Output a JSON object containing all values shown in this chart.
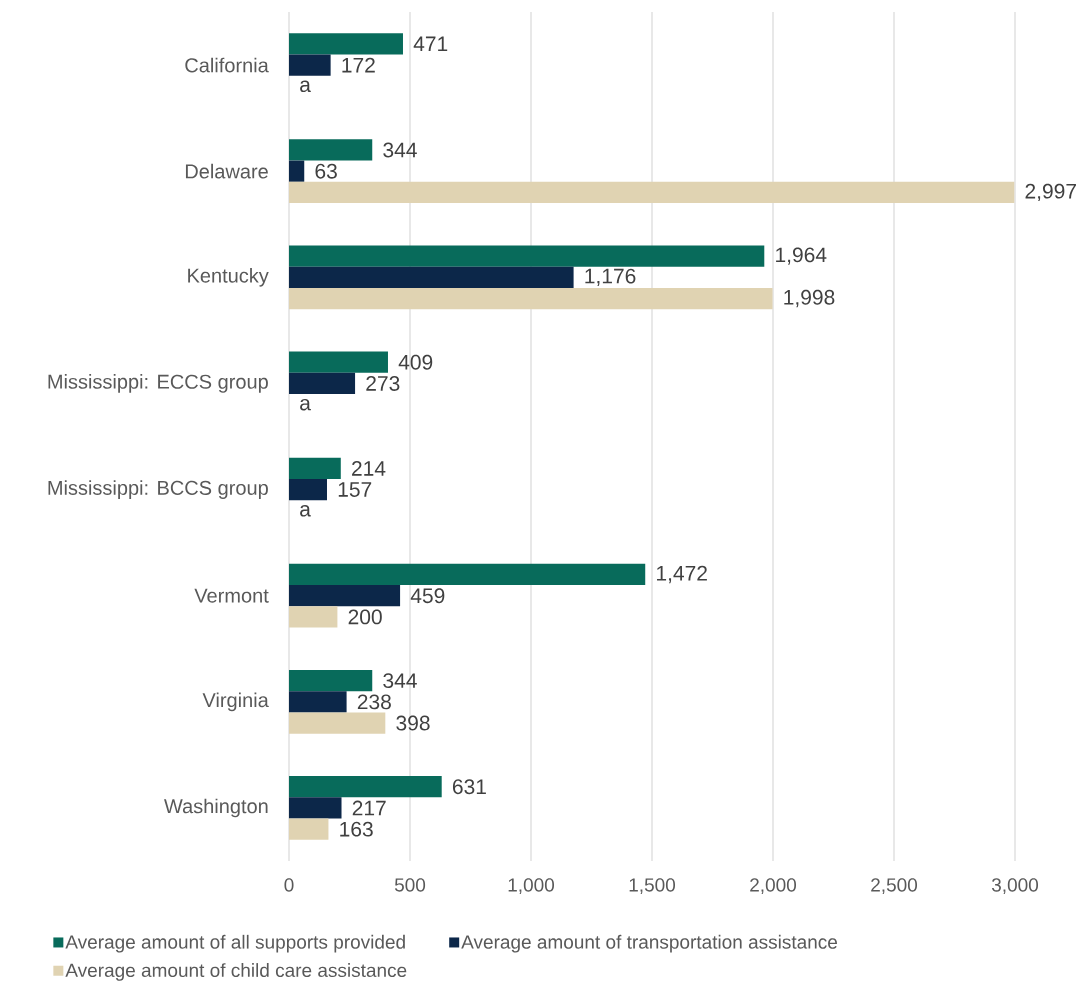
{
  "chart_data": {
    "type": "bar",
    "orientation": "horizontal",
    "categories": [
      "California",
      "Delaware",
      "Kentucky",
      "Mississippi: ECCS group",
      "Mississippi: BCCS group",
      "Vermont",
      "Virginia",
      "Washington"
    ],
    "series": [
      {
        "name": "Average amount of all supports provided",
        "color": "#086b5b",
        "values": [
          471,
          344,
          1964,
          409,
          214,
          1472,
          344,
          631
        ],
        "value_labels": [
          "471",
          "344",
          "1,964",
          "409",
          "214",
          "1,472",
          "344",
          "631"
        ]
      },
      {
        "name": "Average amount of transportation assistance",
        "color": "#0c2749",
        "values": [
          172,
          63,
          1176,
          273,
          157,
          459,
          238,
          217
        ],
        "value_labels": [
          "172",
          "63",
          "1,176",
          "273",
          "157",
          "459",
          "238",
          "217"
        ]
      },
      {
        "name": "Average amount of child care assistance",
        "color": "#e0d3b2",
        "values": [
          null,
          2997,
          1998,
          null,
          null,
          200,
          398,
          163
        ],
        "value_labels": [
          "a",
          "2,997",
          "1,998",
          "a",
          "a",
          "200",
          "398",
          "163"
        ]
      }
    ],
    "xlim": [
      0,
      3000
    ],
    "xticks": [
      0,
      500,
      {
        "value": 1000,
        "label": "1,000"
      },
      {
        "value": 1500,
        "label": "1,500"
      },
      {
        "value": 2000,
        "label": "2,000"
      },
      {
        "value": 2500,
        "label": "2,500"
      },
      {
        "value": 3000,
        "label": "3,000"
      }
    ],
    "grid": "x",
    "legend": "bottom"
  }
}
